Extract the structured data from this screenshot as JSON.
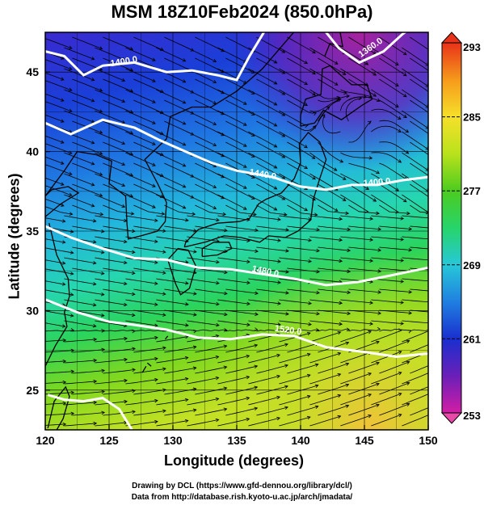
{
  "title": "MSM 18Z10Feb2024 (850.0hPa)",
  "x_axis": {
    "label": "Longitude (degrees)",
    "ticks": [
      "120",
      "125",
      "130",
      "135",
      "140",
      "145",
      "150"
    ],
    "range": [
      120,
      150
    ]
  },
  "y_axis": {
    "label": "Latitude  (degrees)",
    "ticks": [
      "25",
      "30",
      "35",
      "40",
      "45"
    ],
    "range": [
      22.5,
      47.5
    ]
  },
  "colorbar": {
    "ticks": [
      "293",
      "285",
      "277",
      "269",
      "261",
      "253"
    ],
    "range": [
      253,
      293
    ],
    "colors": [
      "#d21ea5",
      "#6a1fb8",
      "#1a2fcf",
      "#1f7fe0",
      "#27c8d8",
      "#27d46a",
      "#4ccc1f",
      "#b9e21c",
      "#f6e02a",
      "#f69a1b",
      "#e8321a"
    ]
  },
  "contours": {
    "color": "#ffffff",
    "labels": [
      {
        "text": "1360.0",
        "lon": 145.6,
        "lat": 46.4,
        "rot": -35
      },
      {
        "text": "1400.0",
        "lon": 126.2,
        "lat": 45.5,
        "rot": -10
      },
      {
        "text": "1440.0",
        "lon": 137.0,
        "lat": 38.4,
        "rot": 10
      },
      {
        "text": "1400.0",
        "lon": 146.0,
        "lat": 37.9,
        "rot": -5
      },
      {
        "text": "1480.0",
        "lon": 137.2,
        "lat": 32.3,
        "rot": 12
      },
      {
        "text": "1520.0",
        "lon": 139.0,
        "lat": 28.6,
        "rot": 8
      }
    ]
  },
  "credits": {
    "line1": "Drawing by DCL (https://www.gfd-dennou.org/library/dcl/)",
    "line2": "Data from http://database.rish.kyoto-u.ac.jp/arch/jmadata/"
  }
}
